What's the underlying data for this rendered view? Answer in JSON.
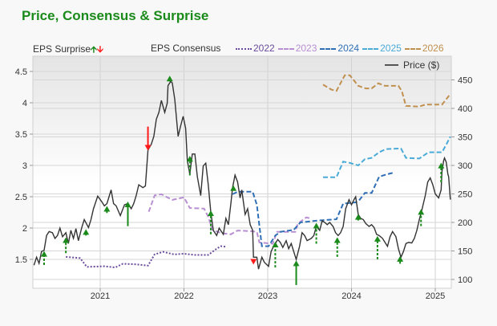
{
  "title": "Price, Consensus & Surprise",
  "legend": {
    "surprise_label": "EPS Surprise",
    "consensus_label": "EPS Consensus",
    "price_label": "Price ($)"
  },
  "colors": {
    "title": "#1a8a1a",
    "up": "#1a8a1a",
    "down": "#ff1a1a",
    "price": "#333333",
    "2022": "#6a4c9c",
    "2023": "#b88fd2",
    "2024": "#2f6fb5",
    "2025": "#4aaad8",
    "2026": "#c0904e"
  },
  "chart_data": {
    "type": "line",
    "x_ticks": [
      "2021",
      "2022",
      "2023",
      "2024",
      "2025"
    ],
    "xlim": [
      2020.2,
      2025.22
    ],
    "left_axis": {
      "label": "",
      "ticks": [
        "1.5",
        "2",
        "2.5",
        "3",
        "3.5",
        "4",
        "4.5"
      ],
      "ylim": [
        1.05,
        4.65
      ]
    },
    "right_axis": {
      "label": "",
      "ticks": [
        "100",
        "150",
        "200",
        "250",
        "300",
        "350",
        "400",
        "450"
      ],
      "ylim": [
        85,
        480
      ]
    },
    "grid": true,
    "price": {
      "name": "Price ($)",
      "axis": "right",
      "points": [
        [
          2020.21,
          125
        ],
        [
          2020.24,
          139
        ],
        [
          2020.27,
          128
        ],
        [
          2020.3,
          149
        ],
        [
          2020.33,
          151
        ],
        [
          2020.36,
          177
        ],
        [
          2020.39,
          184
        ],
        [
          2020.43,
          182
        ],
        [
          2020.46,
          172
        ],
        [
          2020.49,
          177
        ],
        [
          2020.52,
          190
        ],
        [
          2020.55,
          175
        ],
        [
          2020.59,
          182
        ],
        [
          2020.62,
          163
        ],
        [
          2020.65,
          186
        ],
        [
          2020.68,
          172
        ],
        [
          2020.71,
          189
        ],
        [
          2020.74,
          168
        ],
        [
          2020.78,
          191
        ],
        [
          2020.81,
          205
        ],
        [
          2020.86,
          191
        ],
        [
          2020.89,
          205
        ],
        [
          2020.92,
          224
        ],
        [
          2020.97,
          246
        ],
        [
          2021.02,
          236
        ],
        [
          2021.05,
          229
        ],
        [
          2021.08,
          233
        ],
        [
          2021.13,
          257
        ],
        [
          2021.16,
          233
        ],
        [
          2021.19,
          229
        ],
        [
          2021.24,
          212
        ],
        [
          2021.29,
          231
        ],
        [
          2021.33,
          233
        ],
        [
          2021.37,
          224
        ],
        [
          2021.4,
          233
        ],
        [
          2021.43,
          247
        ],
        [
          2021.46,
          266
        ],
        [
          2021.51,
          261
        ],
        [
          2021.54,
          264
        ],
        [
          2021.57,
          327
        ],
        [
          2021.61,
          337
        ],
        [
          2021.64,
          351
        ],
        [
          2021.67,
          381
        ],
        [
          2021.7,
          393
        ],
        [
          2021.73,
          414
        ],
        [
          2021.77,
          393
        ],
        [
          2021.8,
          409
        ],
        [
          2021.81,
          440
        ],
        [
          2021.84,
          447
        ],
        [
          2021.86,
          445
        ],
        [
          2021.89,
          416
        ],
        [
          2021.93,
          351
        ],
        [
          2021.96,
          369
        ],
        [
          2021.99,
          386
        ],
        [
          2022.02,
          365
        ],
        [
          2022.04,
          308
        ],
        [
          2022.07,
          285
        ],
        [
          2022.1,
          320
        ],
        [
          2022.13,
          320
        ],
        [
          2022.16,
          280
        ],
        [
          2022.2,
          247
        ],
        [
          2022.23,
          299
        ],
        [
          2022.26,
          304
        ],
        [
          2022.29,
          266
        ],
        [
          2022.32,
          219
        ],
        [
          2022.35,
          186
        ],
        [
          2022.39,
          177
        ],
        [
          2022.42,
          190
        ],
        [
          2022.47,
          179
        ],
        [
          2022.5,
          207
        ],
        [
          2022.53,
          196
        ],
        [
          2022.56,
          233
        ],
        [
          2022.58,
          261
        ],
        [
          2022.61,
          283
        ],
        [
          2022.64,
          271
        ],
        [
          2022.67,
          243
        ],
        [
          2022.69,
          257
        ],
        [
          2022.73,
          214
        ],
        [
          2022.76,
          224
        ],
        [
          2022.79,
          196
        ],
        [
          2022.82,
          186
        ],
        [
          2022.83,
          139
        ],
        [
          2022.87,
          139
        ],
        [
          2022.89,
          118
        ],
        [
          2022.93,
          139
        ],
        [
          2022.96,
          130
        ],
        [
          2023.01,
          123
        ],
        [
          2023.04,
          149
        ],
        [
          2023.07,
          158
        ],
        [
          2023.12,
          170
        ],
        [
          2023.15,
          165
        ],
        [
          2023.18,
          156
        ],
        [
          2023.22,
          168
        ],
        [
          2023.25,
          154
        ],
        [
          2023.28,
          163
        ],
        [
          2023.31,
          149
        ],
        [
          2023.34,
          135
        ],
        [
          2023.38,
          158
        ],
        [
          2023.41,
          182
        ],
        [
          2023.44,
          177
        ],
        [
          2023.47,
          168
        ],
        [
          2023.52,
          172
        ],
        [
          2023.55,
          177
        ],
        [
          2023.58,
          193
        ],
        [
          2023.62,
          186
        ],
        [
          2023.65,
          203
        ],
        [
          2023.68,
          200
        ],
        [
          2023.71,
          196
        ],
        [
          2023.74,
          200
        ],
        [
          2023.78,
          193
        ],
        [
          2023.81,
          182
        ],
        [
          2023.84,
          177
        ],
        [
          2023.87,
          182
        ],
        [
          2023.9,
          193
        ],
        [
          2023.93,
          224
        ],
        [
          2023.97,
          240
        ],
        [
          2024.0,
          231
        ],
        [
          2024.03,
          240
        ],
        [
          2024.05,
          245
        ],
        [
          2024.08,
          214
        ],
        [
          2024.11,
          207
        ],
        [
          2024.14,
          205
        ],
        [
          2024.17,
          198
        ],
        [
          2024.21,
          193
        ],
        [
          2024.24,
          196
        ],
        [
          2024.27,
          191
        ],
        [
          2024.3,
          179
        ],
        [
          2024.33,
          177
        ],
        [
          2024.37,
          172
        ],
        [
          2024.4,
          165
        ],
        [
          2024.43,
          158
        ],
        [
          2024.46,
          175
        ],
        [
          2024.49,
          184
        ],
        [
          2024.53,
          175
        ],
        [
          2024.56,
          154
        ],
        [
          2024.59,
          139
        ],
        [
          2024.62,
          149
        ],
        [
          2024.65,
          163
        ],
        [
          2024.68,
          165
        ],
        [
          2024.72,
          164
        ],
        [
          2024.75,
          172
        ],
        [
          2024.78,
          186
        ],
        [
          2024.81,
          205
        ],
        [
          2024.84,
          222
        ],
        [
          2024.88,
          247
        ],
        [
          2024.91,
          271
        ],
        [
          2024.94,
          278
        ],
        [
          2024.97,
          266
        ],
        [
          2025.0,
          250
        ],
        [
          2025.04,
          243
        ],
        [
          2025.07,
          257
        ],
        [
          2025.08,
          290
        ],
        [
          2025.1,
          308
        ],
        [
          2025.11,
          313
        ],
        [
          2025.13,
          306
        ],
        [
          2025.15,
          285
        ],
        [
          2025.16,
          280
        ],
        [
          2025.18,
          240
        ]
      ]
    },
    "consensus": [
      {
        "name": "2022",
        "style": "dotted",
        "points": [
          [
            2020.59,
            1.54
          ],
          [
            2020.76,
            1.52
          ],
          [
            2020.84,
            1.38
          ],
          [
            2021.05,
            1.39
          ],
          [
            2021.18,
            1.37
          ],
          [
            2021.27,
            1.43
          ],
          [
            2021.43,
            1.42
          ],
          [
            2021.57,
            1.4
          ],
          [
            2021.65,
            1.58
          ],
          [
            2021.75,
            1.62
          ],
          [
            2021.88,
            1.58
          ],
          [
            2022.0,
            1.59
          ],
          [
            2022.13,
            1.57
          ],
          [
            2022.29,
            1.57
          ],
          [
            2022.39,
            1.67
          ],
          [
            2022.44,
            1.71
          ],
          [
            2022.5,
            1.7
          ]
        ]
      },
      {
        "name": "2023",
        "style": "dashed",
        "points": [
          [
            2021.58,
            2.26
          ],
          [
            2021.65,
            2.52
          ],
          [
            2021.73,
            2.54
          ],
          [
            2021.86,
            2.45
          ],
          [
            2022.0,
            2.49
          ],
          [
            2022.07,
            2.32
          ],
          [
            2022.24,
            2.31
          ],
          [
            2022.29,
            2.18
          ],
          [
            2022.34,
            1.97
          ],
          [
            2022.44,
            1.92
          ],
          [
            2022.56,
            1.9
          ],
          [
            2022.64,
            1.96
          ],
          [
            2022.8,
            1.95
          ],
          [
            2022.87,
            1.94
          ],
          [
            2022.9,
            1.77
          ],
          [
            2023.06,
            1.75
          ],
          [
            2023.11,
            1.94
          ],
          [
            2023.33,
            1.94
          ],
          [
            2023.36,
            2.07
          ],
          [
            2023.46,
            2.17
          ],
          [
            2023.52,
            2.15
          ]
        ]
      },
      {
        "name": "2024",
        "style": "dashed",
        "points": [
          [
            2022.58,
            2.54
          ],
          [
            2022.64,
            2.58
          ],
          [
            2022.82,
            2.58
          ],
          [
            2022.87,
            2.37
          ],
          [
            2022.93,
            1.71
          ],
          [
            2023.01,
            1.71
          ],
          [
            2023.09,
            1.88
          ],
          [
            2023.15,
            1.94
          ],
          [
            2023.31,
            1.97
          ],
          [
            2023.39,
            2.09
          ],
          [
            2023.6,
            2.12
          ],
          [
            2023.82,
            2.14
          ],
          [
            2023.9,
            2.39
          ],
          [
            2024.05,
            2.41
          ],
          [
            2024.09,
            2.44
          ],
          [
            2024.16,
            2.56
          ],
          [
            2024.24,
            2.56
          ],
          [
            2024.33,
            2.82
          ],
          [
            2024.43,
            2.86
          ],
          [
            2024.49,
            2.88
          ]
        ]
      },
      {
        "name": "2025",
        "style": "dashed",
        "points": [
          [
            2023.66,
            2.81
          ],
          [
            2023.82,
            2.81
          ],
          [
            2023.9,
            3.06
          ],
          [
            2023.98,
            3.04
          ],
          [
            2024.08,
            3.0
          ],
          [
            2024.16,
            3.1
          ],
          [
            2024.24,
            3.12
          ],
          [
            2024.33,
            3.21
          ],
          [
            2024.41,
            3.26
          ],
          [
            2024.59,
            3.27
          ],
          [
            2024.65,
            3.12
          ],
          [
            2024.81,
            3.11
          ],
          [
            2024.92,
            3.21
          ],
          [
            2025.08,
            3.21
          ],
          [
            2025.13,
            3.33
          ],
          [
            2025.18,
            3.46
          ]
        ]
      },
      {
        "name": "2026",
        "style": "dashed",
        "points": [
          [
            2023.66,
            4.29
          ],
          [
            2023.76,
            4.21
          ],
          [
            2023.82,
            4.19
          ],
          [
            2023.92,
            4.44
          ],
          [
            2023.98,
            4.44
          ],
          [
            2024.08,
            4.27
          ],
          [
            2024.17,
            4.23
          ],
          [
            2024.24,
            4.23
          ],
          [
            2024.32,
            4.31
          ],
          [
            2024.4,
            4.27
          ],
          [
            2024.56,
            4.27
          ],
          [
            2024.6,
            4.19
          ],
          [
            2024.65,
            3.95
          ],
          [
            2024.81,
            3.94
          ],
          [
            2024.88,
            3.97
          ],
          [
            2025.08,
            3.97
          ],
          [
            2025.18,
            4.14
          ]
        ]
      }
    ],
    "surprises": [
      {
        "date": 2020.33,
        "from": 1.41,
        "to": 1.62,
        "direction": "up",
        "style": "dashed"
      },
      {
        "date": 2020.59,
        "from": 1.6,
        "to": 1.84,
        "direction": "up",
        "style": "dashed"
      },
      {
        "date": 2020.83,
        "from": 1.88,
        "to": 1.97,
        "direction": "up",
        "style": "dashed"
      },
      {
        "date": 2021.08,
        "from": 2.24,
        "to": 2.34,
        "direction": "up",
        "style": "dashed"
      },
      {
        "date": 2021.33,
        "from": 2.03,
        "to": 2.41,
        "direction": "up",
        "style": "solid"
      },
      {
        "date": 2021.57,
        "from": 3.62,
        "to": 3.25,
        "direction": "down",
        "style": "solid"
      },
      {
        "date": 2021.83,
        "from": 4.34,
        "to": 4.42,
        "direction": "up",
        "style": "dashed"
      },
      {
        "date": 2022.07,
        "from": 2.84,
        "to": 3.14,
        "direction": "up",
        "style": "dashed"
      },
      {
        "date": 2022.32,
        "from": 1.9,
        "to": 2.27,
        "direction": "up",
        "style": "dashed"
      },
      {
        "date": 2022.59,
        "from": 2.61,
        "to": 2.67,
        "direction": "up",
        "style": "dashed"
      },
      {
        "date": 2022.83,
        "from": 1.48,
        "to": 1.43,
        "direction": "down",
        "style": "dashed"
      },
      {
        "date": 2023.09,
        "from": 1.37,
        "to": 1.77,
        "direction": "up",
        "style": "dashed"
      },
      {
        "date": 2023.34,
        "from": 1.09,
        "to": 1.47,
        "direction": "up",
        "style": "solid"
      },
      {
        "date": 2023.58,
        "from": 1.75,
        "to": 2.07,
        "direction": "up",
        "style": "dashed"
      },
      {
        "date": 2023.83,
        "from": 1.54,
        "to": 1.84,
        "direction": "up",
        "style": "dashed"
      },
      {
        "date": 2024.08,
        "from": 2.12,
        "to": 2.21,
        "direction": "up",
        "style": "dashed"
      },
      {
        "date": 2024.31,
        "from": 1.5,
        "to": 1.86,
        "direction": "up",
        "style": "dashed"
      },
      {
        "date": 2024.58,
        "from": 1.43,
        "to": 1.54,
        "direction": "up",
        "style": "dashed"
      },
      {
        "date": 2024.83,
        "from": 2.03,
        "to": 2.29,
        "direction": "up",
        "style": "dashed"
      },
      {
        "date": 2025.07,
        "from": 2.73,
        "to": 3.03,
        "direction": "up",
        "style": "dashed"
      }
    ]
  }
}
